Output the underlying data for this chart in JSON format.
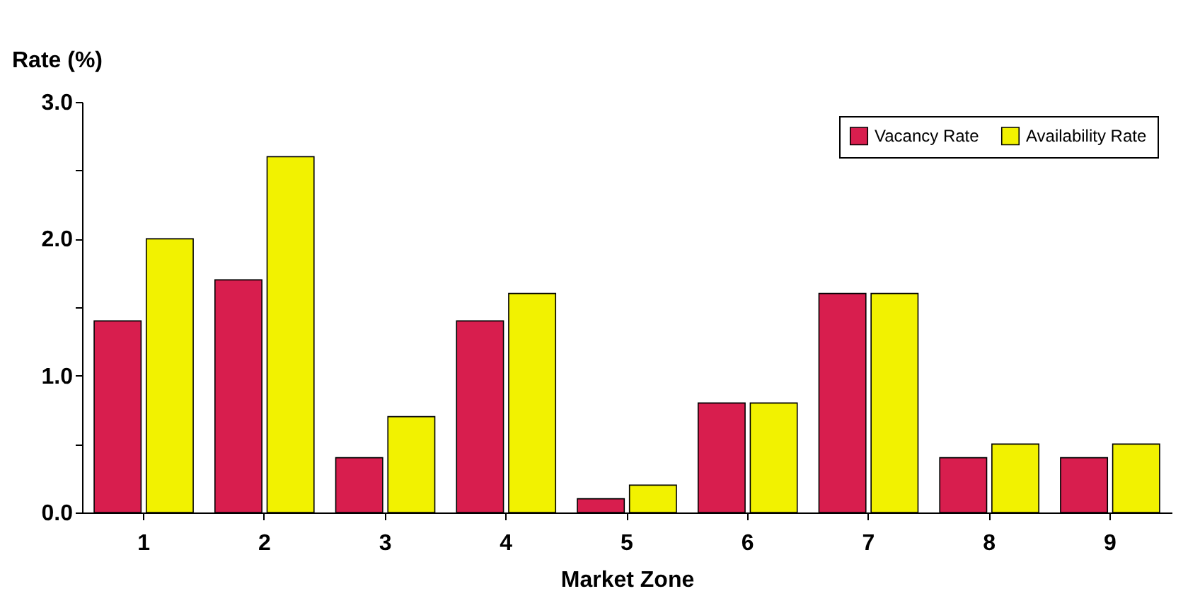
{
  "chart_data": {
    "type": "bar",
    "xlabel": "Market Zone",
    "ylabel": "Rate (%)",
    "categories": [
      "1",
      "2",
      "3",
      "4",
      "5",
      "6",
      "7",
      "8",
      "9"
    ],
    "series": [
      {
        "name": "Vacancy Rate",
        "color": "#d81e4e",
        "values": [
          1.4,
          1.7,
          0.4,
          1.4,
          0.1,
          0.8,
          1.6,
          0.4,
          0.4
        ]
      },
      {
        "name": "Availability Rate",
        "color": "#f2f200",
        "values": [
          2.0,
          2.6,
          0.7,
          1.6,
          0.2,
          0.8,
          1.6,
          0.5,
          0.5
        ]
      }
    ],
    "ylim": [
      0,
      3
    ],
    "yticks": [
      {
        "value": 0,
        "label": "0.0"
      },
      {
        "value": 0.5,
        "label": null
      },
      {
        "value": 1,
        "label": "1.0"
      },
      {
        "value": 1.5,
        "label": null
      },
      {
        "value": 2,
        "label": "2.0"
      },
      {
        "value": 2.5,
        "label": null
      },
      {
        "value": 3,
        "label": "3.0"
      }
    ],
    "legend": "top right",
    "grid": false
  }
}
